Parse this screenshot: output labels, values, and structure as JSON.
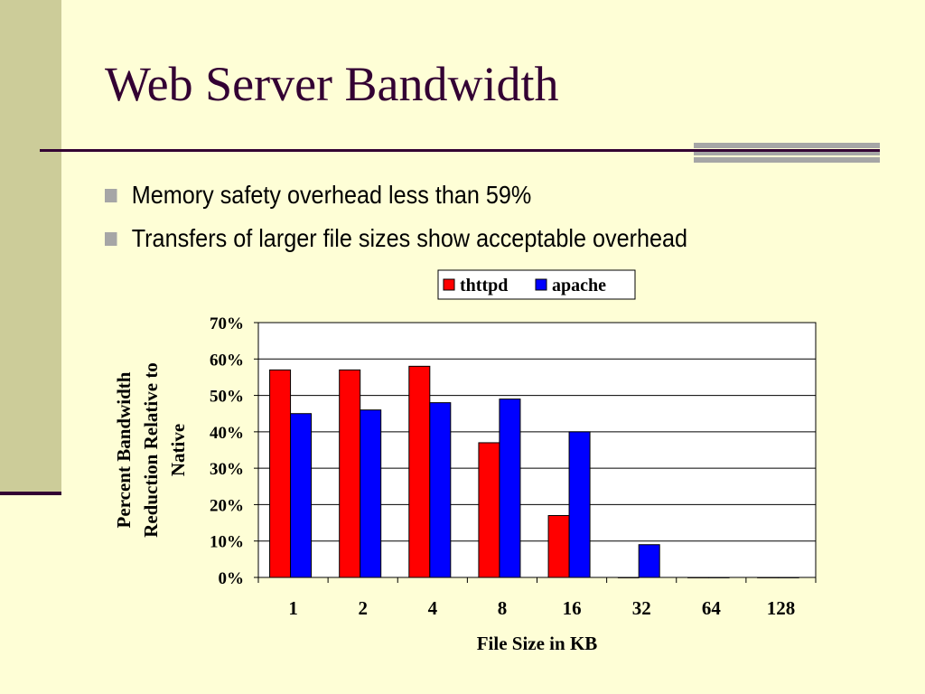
{
  "slide": {
    "title": "Web Server Bandwidth",
    "bullets": [
      "Memory safety overhead less than 59%",
      "Transfers of larger file sizes show acceptable overhead"
    ],
    "colors": {
      "background": "#fefed6",
      "title": "#330033",
      "sidebar": "#cccc99",
      "bullet": "#a6a6a6"
    }
  },
  "chart_data": {
    "type": "bar",
    "categories": [
      "1",
      "2",
      "4",
      "8",
      "16",
      "32",
      "64",
      "128"
    ],
    "series": [
      {
        "name": "thttpd",
        "color": "#ff0000",
        "values": [
          57,
          57,
          58,
          37,
          17,
          0,
          0,
          0
        ]
      },
      {
        "name": "apache",
        "color": "#0000ff",
        "values": [
          45,
          46,
          48,
          49,
          40,
          9,
          0,
          0
        ]
      }
    ],
    "xlabel": "File Size in KB",
    "ylabel": "Percent Bandwidth Reduction Relative to Native",
    "ylabel_lines": [
      "Percent Bandwidth",
      "Reduction Relative to",
      "Native"
    ],
    "ylim": [
      0,
      70
    ],
    "yticks": [
      "0%",
      "10%",
      "20%",
      "30%",
      "40%",
      "50%",
      "60%",
      "70%"
    ],
    "grid": true,
    "legend": "top"
  }
}
